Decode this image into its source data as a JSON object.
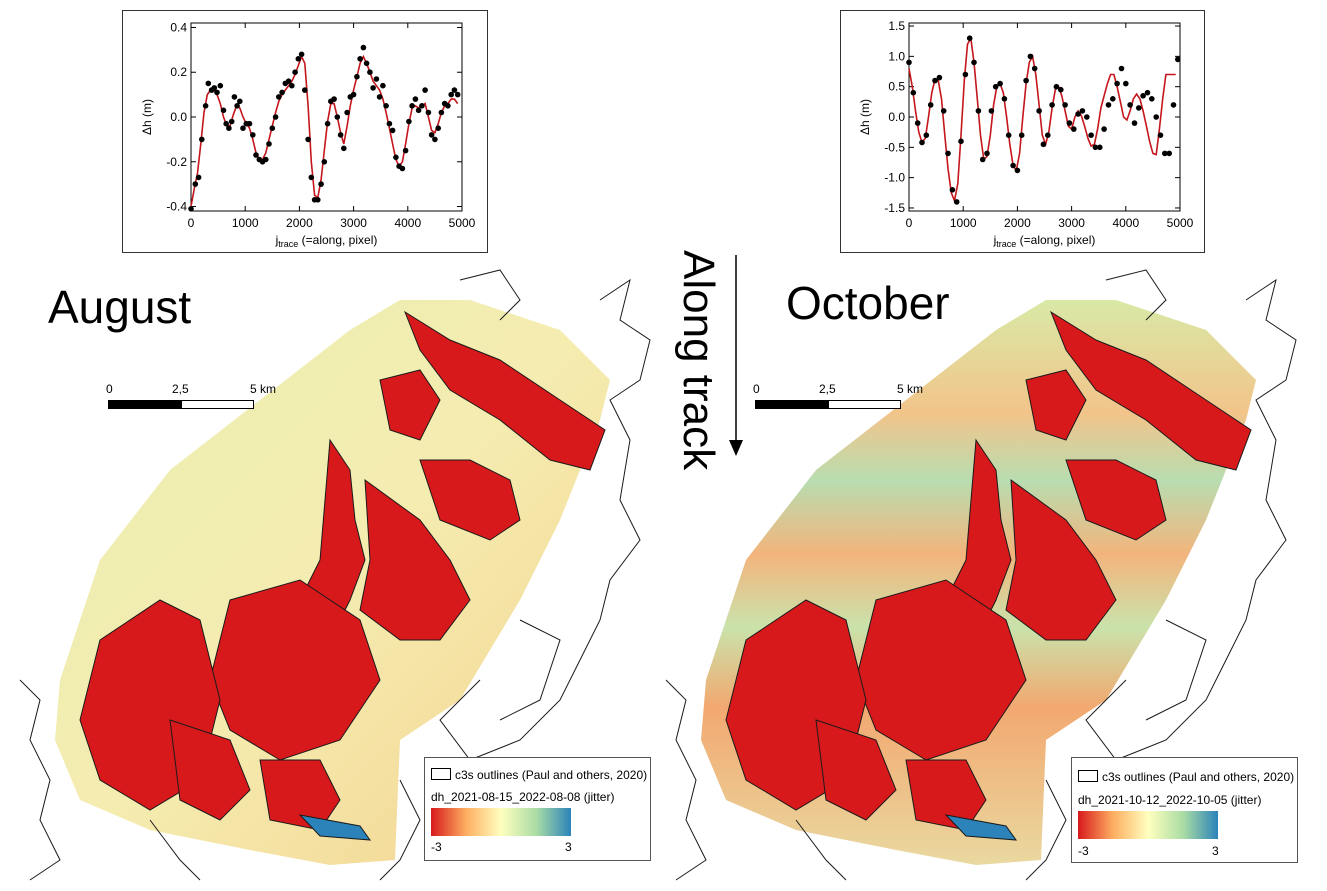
{
  "colors": {
    "red": "#d7191c",
    "orange": "#fdae61",
    "yellow": "#ffffbf",
    "green": "#abdda4",
    "blue": "#2b83ba",
    "curve": "#c4161c",
    "points": "#000000"
  },
  "panels": [
    {
      "month_label": "August",
      "scalebar": {
        "labels": [
          "0",
          "2,5",
          "5 km"
        ]
      },
      "legend": {
        "outline_label": "c3s outlines (Paul and others, 2020)",
        "layer_label": "dh_2021-08-15_2022-08-08 (jitter)",
        "min_label": "-3",
        "max_label": "3"
      }
    },
    {
      "month_label": "October",
      "scalebar": {
        "labels": [
          "0",
          "2,5",
          "5 km"
        ]
      },
      "legend": {
        "outline_label": "c3s outlines (Paul and others, 2020)",
        "layer_label": "dh_2021-10-12_2022-10-05 (jitter)",
        "min_label": "-3",
        "max_label": "3"
      }
    }
  ],
  "along_track_label": "Along track",
  "chart_data": [
    {
      "type": "line",
      "xlabel": "j",
      "xlabel_sub": "trace",
      "xlabel_rest": " (=along, pixel)",
      "ylabel": "Δh  (m)",
      "xlim": [
        0,
        5000
      ],
      "ylim": [
        -0.42,
        0.42
      ],
      "xticks": [
        0,
        1000,
        2000,
        3000,
        4000,
        5000
      ],
      "yticks": [
        -0.4,
        -0.2,
        0.0,
        0.2,
        0.4
      ],
      "ytick_labels": [
        "-0.4",
        "-0.2",
        "0.0",
        "0.2",
        "0.4"
      ],
      "series": [
        {
          "kind": "points",
          "x": [
            0,
            80,
            140,
            200,
            270,
            320,
            380,
            430,
            480,
            540,
            600,
            650,
            700,
            750,
            800,
            850,
            900,
            960,
            1020,
            1080,
            1140,
            1200,
            1260,
            1320,
            1380,
            1440,
            1500,
            1560,
            1620,
            1680,
            1740,
            1800,
            1860,
            1920,
            1980,
            2040,
            2100,
            2160,
            2220,
            2280,
            2340,
            2400,
            2460,
            2520,
            2580,
            2640,
            2700,
            2760,
            2820,
            2880,
            2940,
            3000,
            3060,
            3120,
            3180,
            3240,
            3300,
            3360,
            3420,
            3480,
            3540,
            3600,
            3660,
            3720,
            3780,
            3840,
            3900,
            3960,
            4020,
            4080,
            4140,
            4200,
            4260,
            4320,
            4380,
            4440,
            4500,
            4560,
            4620,
            4680,
            4740,
            4800,
            4860,
            4920
          ],
          "y": [
            -0.41,
            -0.3,
            -0.27,
            -0.1,
            0.05,
            0.15,
            0.12,
            0.13,
            0.11,
            0.14,
            0.03,
            -0.03,
            -0.05,
            -0.02,
            0.09,
            0.05,
            0.07,
            -0.05,
            -0.03,
            -0.03,
            -0.08,
            -0.17,
            -0.19,
            -0.2,
            -0.19,
            -0.12,
            -0.05,
            0.0,
            0.09,
            0.11,
            0.15,
            0.16,
            0.14,
            0.2,
            0.26,
            0.28,
            0.12,
            -0.1,
            -0.27,
            -0.37,
            -0.37,
            -0.3,
            -0.2,
            -0.03,
            0.07,
            0.08,
            0.0,
            -0.08,
            -0.14,
            0.02,
            0.09,
            0.1,
            0.18,
            0.26,
            0.31,
            0.24,
            0.2,
            0.13,
            0.17,
            0.09,
            0.14,
            0.05,
            -0.03,
            -0.06,
            -0.18,
            -0.22,
            -0.23,
            -0.15,
            -0.02,
            0.05,
            0.08,
            0.03,
            0.05,
            0.12,
            0.02,
            -0.08,
            -0.1,
            -0.05,
            0.02,
            0.06,
            0.05,
            0.1,
            0.12,
            0.1
          ]
        },
        {
          "kind": "line",
          "x": [
            0,
            60,
            120,
            180,
            240,
            300,
            360,
            420,
            480,
            540,
            600,
            660,
            720,
            780,
            840,
            900,
            960,
            1020,
            1080,
            1140,
            1200,
            1260,
            1320,
            1380,
            1440,
            1500,
            1560,
            1620,
            1680,
            1740,
            1800,
            1860,
            1920,
            1980,
            2040,
            2100,
            2160,
            2220,
            2280,
            2340,
            2400,
            2460,
            2520,
            2580,
            2640,
            2700,
            2760,
            2820,
            2880,
            2940,
            3000,
            3060,
            3120,
            3180,
            3240,
            3300,
            3360,
            3420,
            3480,
            3540,
            3600,
            3660,
            3720,
            3780,
            3840,
            3900,
            3960,
            4020,
            4080,
            4140,
            4200,
            4260,
            4320,
            4380,
            4440,
            4500,
            4560,
            4620,
            4680,
            4740,
            4800,
            4860,
            4920
          ],
          "y": [
            -0.4,
            -0.32,
            -0.25,
            -0.12,
            0.02,
            0.1,
            0.12,
            0.12,
            0.1,
            0.06,
            0.0,
            -0.04,
            -0.04,
            0.01,
            0.05,
            0.04,
            0.0,
            -0.03,
            -0.05,
            -0.1,
            -0.16,
            -0.19,
            -0.19,
            -0.16,
            -0.1,
            -0.04,
            0.02,
            0.07,
            0.1,
            0.12,
            0.14,
            0.16,
            0.19,
            0.23,
            0.27,
            0.24,
            0.05,
            -0.2,
            -0.35,
            -0.36,
            -0.28,
            -0.15,
            -0.02,
            0.06,
            0.06,
            0.0,
            -0.07,
            -0.12,
            -0.04,
            0.05,
            0.12,
            0.18,
            0.24,
            0.27,
            0.24,
            0.2,
            0.16,
            0.14,
            0.12,
            0.08,
            0.02,
            -0.05,
            -0.12,
            -0.19,
            -0.22,
            -0.2,
            -0.12,
            -0.03,
            0.04,
            0.05,
            0.04,
            0.05,
            0.06,
            0.0,
            -0.06,
            -0.07,
            -0.03,
            0.02,
            0.05,
            0.06,
            0.08,
            0.08,
            0.06
          ]
        }
      ]
    },
    {
      "type": "line",
      "xlabel": "j",
      "xlabel_sub": "trace",
      "xlabel_rest": " (=along, pixel)",
      "ylabel": "Δh  (m)",
      "xlim": [
        0,
        5000
      ],
      "ylim": [
        -1.55,
        1.55
      ],
      "xticks": [
        0,
        1000,
        2000,
        3000,
        4000,
        5000
      ],
      "yticks": [
        -1.5,
        -1.0,
        -0.5,
        0.0,
        0.5,
        1.0,
        1.5
      ],
      "ytick_labels": [
        "-1.5",
        "-1.0",
        "-0.5",
        "0.0",
        "0.5",
        "1.0",
        "1.5"
      ],
      "series": [
        {
          "kind": "points",
          "x": [
            0,
            80,
            160,
            240,
            320,
            400,
            480,
            560,
            640,
            720,
            800,
            880,
            960,
            1040,
            1120,
            1200,
            1280,
            1360,
            1440,
            1520,
            1600,
            1680,
            1760,
            1840,
            1920,
            2000,
            2080,
            2160,
            2240,
            2320,
            2400,
            2480,
            2560,
            2640,
            2720,
            2800,
            2880,
            2960,
            3040,
            3120,
            3200,
            3280,
            3360,
            3440,
            3520,
            3600,
            3680,
            3760,
            3840,
            3920,
            4000,
            4080,
            4160,
            4240,
            4320,
            4400,
            4480,
            4560,
            4640,
            4720,
            4800,
            4880,
            4960
          ],
          "y": [
            0.9,
            0.4,
            -0.1,
            -0.42,
            -0.3,
            0.2,
            0.6,
            0.65,
            0.1,
            -0.6,
            -1.2,
            -1.4,
            -0.4,
            0.7,
            1.3,
            0.9,
            0.1,
            -0.7,
            -0.6,
            0.1,
            0.5,
            0.55,
            0.3,
            -0.3,
            -0.8,
            -0.88,
            -0.3,
            0.6,
            1.0,
            0.8,
            0.1,
            -0.45,
            -0.3,
            0.2,
            0.5,
            0.45,
            0.2,
            -0.1,
            -0.2,
            0.05,
            0.1,
            0.0,
            -0.3,
            -0.5,
            -0.5,
            -0.2,
            0.2,
            0.3,
            0.55,
            0.8,
            0.55,
            0.2,
            -0.1,
            0.15,
            0.35,
            0.4,
            0.3,
            0.0,
            -0.3,
            -0.6,
            -0.6,
            0.2,
            0.95
          ]
        },
        {
          "kind": "line",
          "x": [
            0,
            60,
            120,
            180,
            240,
            300,
            360,
            420,
            480,
            540,
            600,
            660,
            720,
            780,
            840,
            900,
            960,
            1020,
            1080,
            1140,
            1200,
            1260,
            1320,
            1380,
            1440,
            1500,
            1560,
            1620,
            1680,
            1740,
            1800,
            1860,
            1920,
            1980,
            2040,
            2100,
            2160,
            2220,
            2280,
            2340,
            2400,
            2460,
            2520,
            2580,
            2640,
            2700,
            2760,
            2820,
            2880,
            2940,
            3000,
            3060,
            3120,
            3180,
            3240,
            3300,
            3360,
            3420,
            3480,
            3540,
            3600,
            3660,
            3720,
            3780,
            3840,
            3900,
            3960,
            4020,
            4080,
            4140,
            4200,
            4260,
            4320,
            4380,
            4440,
            4500,
            4560,
            4620,
            4680,
            4740,
            4800,
            4860,
            4920
          ],
          "y": [
            0.8,
            0.5,
            0.1,
            -0.25,
            -0.42,
            -0.35,
            0.0,
            0.4,
            0.62,
            0.6,
            0.3,
            -0.3,
            -0.85,
            -1.25,
            -1.38,
            -1.1,
            -0.3,
            0.6,
            1.2,
            1.3,
            0.9,
            0.3,
            -0.3,
            -0.7,
            -0.65,
            -0.3,
            0.2,
            0.5,
            0.55,
            0.4,
            0.0,
            -0.45,
            -0.8,
            -0.88,
            -0.6,
            0.0,
            0.55,
            0.9,
            1.0,
            0.7,
            0.2,
            -0.3,
            -0.45,
            -0.25,
            0.15,
            0.45,
            0.5,
            0.35,
            0.1,
            -0.15,
            -0.2,
            0.0,
            0.1,
            0.02,
            -0.15,
            -0.35,
            -0.48,
            -0.45,
            -0.2,
            0.15,
            0.35,
            0.55,
            0.7,
            0.7,
            0.5,
            0.25,
            0.0,
            -0.05,
            0.1,
            0.3,
            0.38,
            0.3,
            0.1,
            -0.15,
            -0.4,
            -0.6,
            -0.62,
            -0.2,
            0.3,
            0.7,
            0.7,
            0.7,
            0.7
          ]
        }
      ]
    }
  ]
}
